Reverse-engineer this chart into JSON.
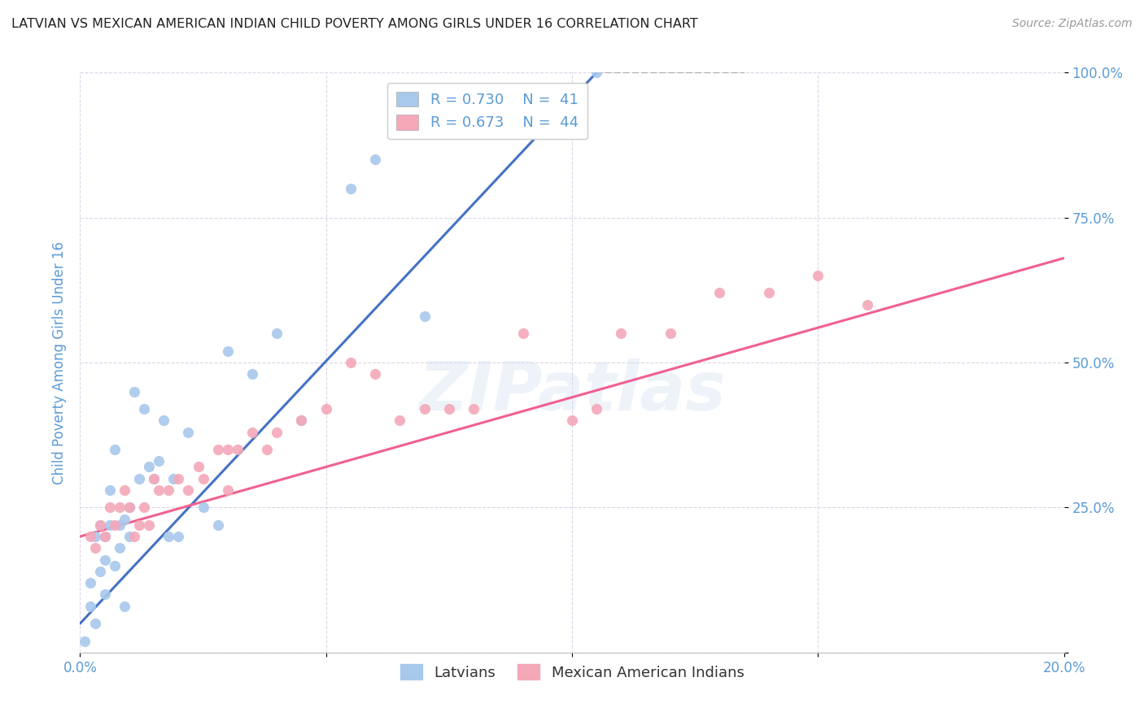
{
  "title": "LATVIAN VS MEXICAN AMERICAN INDIAN CHILD POVERTY AMONG GIRLS UNDER 16 CORRELATION CHART",
  "source": "Source: ZipAtlas.com",
  "ylabel": "Child Poverty Among Girls Under 16",
  "x_min": 0.0,
  "x_max": 20.0,
  "y_min": 0.0,
  "y_max": 100.0,
  "blue_color": "#A8C8EC",
  "pink_color": "#F4A8B8",
  "blue_line_color": "#4472C4",
  "pink_line_color": "#F06090",
  "dashed_color": "#AAAAAA",
  "R_blue": 0.73,
  "N_blue": 41,
  "R_pink": 0.673,
  "N_pink": 44,
  "watermark": "ZIPatlas",
  "legend_labels": [
    "Latvians",
    "Mexican American Indians"
  ],
  "blue_scatter_x": [
    0.1,
    0.2,
    0.2,
    0.3,
    0.3,
    0.4,
    0.4,
    0.5,
    0.5,
    0.5,
    0.6,
    0.6,
    0.7,
    0.7,
    0.8,
    0.8,
    0.9,
    0.9,
    1.0,
    1.0,
    1.1,
    1.2,
    1.3,
    1.4,
    1.5,
    1.6,
    1.7,
    1.8,
    1.9,
    2.0,
    2.2,
    2.5,
    2.8,
    3.0,
    3.5,
    4.0,
    4.5,
    5.5,
    6.0,
    7.0,
    10.5
  ],
  "blue_scatter_y": [
    2,
    8,
    12,
    5,
    20,
    14,
    22,
    10,
    16,
    20,
    22,
    28,
    15,
    35,
    18,
    22,
    8,
    23,
    20,
    25,
    45,
    30,
    42,
    32,
    30,
    33,
    40,
    20,
    30,
    20,
    38,
    25,
    22,
    52,
    48,
    55,
    40,
    80,
    85,
    58,
    100
  ],
  "pink_scatter_x": [
    0.2,
    0.3,
    0.4,
    0.5,
    0.6,
    0.7,
    0.8,
    0.9,
    1.0,
    1.1,
    1.2,
    1.3,
    1.4,
    1.5,
    1.6,
    1.8,
    2.0,
    2.2,
    2.4,
    2.5,
    2.8,
    3.0,
    3.0,
    3.2,
    3.5,
    3.8,
    4.0,
    4.5,
    5.0,
    5.5,
    6.0,
    6.5,
    7.0,
    7.5,
    8.0,
    9.0,
    10.0,
    10.5,
    11.0,
    12.0,
    13.0,
    14.0,
    15.0,
    16.0
  ],
  "pink_scatter_y": [
    20,
    18,
    22,
    20,
    25,
    22,
    25,
    28,
    25,
    20,
    22,
    25,
    22,
    30,
    28,
    28,
    30,
    28,
    32,
    30,
    35,
    28,
    35,
    35,
    38,
    35,
    38,
    40,
    42,
    50,
    48,
    40,
    42,
    42,
    42,
    55,
    40,
    42,
    55,
    55,
    62,
    62,
    65,
    60
  ],
  "blue_line_x0": 0.0,
  "blue_line_y0": 5.0,
  "blue_line_x1": 10.5,
  "blue_line_y1": 100.0,
  "blue_dash_x1": 13.5,
  "blue_dash_y1": 100.0,
  "pink_line_x0": 0.0,
  "pink_line_y0": 20.0,
  "pink_line_x1": 20.0,
  "pink_line_y1": 68.0,
  "background_color": "#FFFFFF",
  "grid_color": "#DDD5E8",
  "title_color": "#222222",
  "axis_label_color": "#5B9BD5",
  "tick_label_color": "#5B9BD5",
  "source_color": "#999999"
}
